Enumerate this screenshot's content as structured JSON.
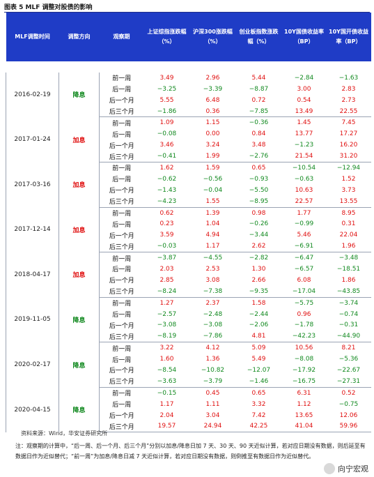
{
  "title": "图表 5 MLF 调整对股债的影响",
  "headers": [
    "MLF调整时间",
    "调整方向",
    "观察期",
    "上证综指涨跌幅（%）",
    "沪深300涨跌幅（%）",
    "创业板指数涨跌幅（%）",
    "10Y国债收益率（BP）",
    "10Y国开债收益率（BP）"
  ],
  "groups": [
    {
      "date": "2016-02-19",
      "direction": "降息",
      "dir_type": "down",
      "rows": [
        {
          "period": "前一周",
          "v": [
            "3.49",
            "2.96",
            "5.44",
            "−2.84",
            "−1.63"
          ]
        },
        {
          "period": "后一周",
          "v": [
            "−3.25",
            "−3.39",
            "−8.87",
            "3.00",
            "2.83"
          ]
        },
        {
          "period": "后一个月",
          "v": [
            "5.55",
            "6.48",
            "0.72",
            "0.54",
            "2.73"
          ]
        },
        {
          "period": "后三个月",
          "v": [
            "−1.86",
            "0.36",
            "−7.85",
            "13.49",
            "22.55"
          ]
        }
      ]
    },
    {
      "date": "2017-01-24",
      "direction": "加息",
      "dir_type": "up",
      "rows": [
        {
          "period": "前一周",
          "v": [
            "1.09",
            "1.15",
            "−0.36",
            "1.45",
            "7.45"
          ]
        },
        {
          "period": "后一周",
          "v": [
            "−0.08",
            "0.00",
            "0.84",
            "13.77",
            "17.27"
          ]
        },
        {
          "period": "后一个月",
          "v": [
            "3.46",
            "3.24",
            "3.48",
            "−1.23",
            "16.20"
          ]
        },
        {
          "period": "后三个月",
          "v": [
            "−0.41",
            "1.99",
            "−2.76",
            "21.54",
            "31.20"
          ]
        }
      ]
    },
    {
      "date": "2017-03-16",
      "direction": "加息",
      "dir_type": "up",
      "rows": [
        {
          "period": "前一周",
          "v": [
            "1.62",
            "1.59",
            "0.65",
            "−10.54",
            "−12.94"
          ]
        },
        {
          "period": "后一周",
          "v": [
            "−0.62",
            "−0.56",
            "−0.93",
            "−0.63",
            "1.52"
          ]
        },
        {
          "period": "后一个月",
          "v": [
            "−1.43",
            "−0.04",
            "−5.50",
            "10.63",
            "3.73"
          ]
        },
        {
          "period": "后三个月",
          "v": [
            "−4.23",
            "1.55",
            "−8.95",
            "22.57",
            "13.55"
          ]
        }
      ]
    },
    {
      "date": "2017-12-14",
      "direction": "加息",
      "dir_type": "up",
      "rows": [
        {
          "period": "前一周",
          "v": [
            "0.62",
            "1.39",
            "0.98",
            "1.77",
            "8.95"
          ]
        },
        {
          "period": "后一周",
          "v": [
            "0.23",
            "1.04",
            "−0.26",
            "−0.99",
            "0.31"
          ]
        },
        {
          "period": "后一个月",
          "v": [
            "3.59",
            "4.94",
            "−3.44",
            "5.46",
            "22.04"
          ]
        },
        {
          "period": "后三个月",
          "v": [
            "−0.03",
            "1.17",
            "2.62",
            "−6.91",
            "1.96"
          ]
        }
      ]
    },
    {
      "date": "2018-04-17",
      "direction": "加息",
      "dir_type": "up",
      "rows": [
        {
          "period": "前一周",
          "v": [
            "−3.87",
            "−4.55",
            "−2.82",
            "−6.47",
            "−3.48"
          ]
        },
        {
          "period": "后一周",
          "v": [
            "2.03",
            "2.53",
            "1.30",
            "−6.57",
            "−18.51"
          ]
        },
        {
          "period": "后一个月",
          "v": [
            "2.85",
            "3.08",
            "2.66",
            "6.08",
            "1.86"
          ]
        },
        {
          "period": "后三个月",
          "v": [
            "−8.24",
            "−7.38",
            "−9.35",
            "−17.04",
            "−43.85"
          ]
        }
      ]
    },
    {
      "date": "2019-11-05",
      "direction": "降息",
      "dir_type": "down",
      "rows": [
        {
          "period": "前一周",
          "v": [
            "1.27",
            "2.37",
            "1.58",
            "−5.75",
            "−3.74"
          ]
        },
        {
          "period": "后一周",
          "v": [
            "−2.57",
            "−2.48",
            "−2.44",
            "0.96",
            "−0.74"
          ]
        },
        {
          "period": "后一个月",
          "v": [
            "−3.08",
            "−3.08",
            "−2.06",
            "−1.78",
            "−0.31"
          ]
        },
        {
          "period": "后三个月",
          "v": [
            "−8.19",
            "−7.86",
            "4.81",
            "−42.23",
            "−44.90"
          ]
        }
      ]
    },
    {
      "date": "2020-02-17",
      "direction": "降息",
      "dir_type": "down",
      "rows": [
        {
          "period": "前一周",
          "v": [
            "3.22",
            "4.12",
            "5.09",
            "10.56",
            "8.21"
          ]
        },
        {
          "period": "后一周",
          "v": [
            "1.60",
            "1.36",
            "5.49",
            "−8.08",
            "−5.36"
          ]
        },
        {
          "period": "后一个月",
          "v": [
            "−8.54",
            "−10.82",
            "−12.07",
            "−17.92",
            "−22.67"
          ]
        },
        {
          "period": "后三个月",
          "v": [
            "−3.63",
            "−3.79",
            "−1.46",
            "−16.75",
            "−27.31"
          ]
        }
      ]
    },
    {
      "date": "2020-04-15",
      "direction": "降息",
      "dir_type": "down",
      "rows": [
        {
          "period": "前一周",
          "v": [
            "−0.15",
            "0.45",
            "0.65",
            "6.31",
            "0.52"
          ]
        },
        {
          "period": "后一周",
          "v": [
            "1.17",
            "1.11",
            "3.32",
            "1.12",
            "−0.75"
          ]
        },
        {
          "period": "后一个月",
          "v": [
            "2.04",
            "3.04",
            "7.42",
            "13.65",
            "12.06"
          ]
        },
        {
          "period": "后三个月",
          "v": [
            "19.57",
            "24.94",
            "42.25",
            "41.04",
            "59.96"
          ]
        }
      ]
    }
  ],
  "source": "资料来源：Wind，华安证券研究所",
  "note": "注：观察期的计算中，“后一周、后一个月、后三个月”分别以加息/降息日加 7 天、30 天、90 天近似计算，若对应日期没有数据，则后延至有数据日作为近似替代；“前一周”为加息/降息日减 7 天近似计算，若对应日期没有数据，则倒推至有数据日作为近似替代。",
  "watermark": "向宁宏观",
  "colors": {
    "header_bg": "#1f3cc6",
    "positive": "#e01010",
    "negative": "#11891f"
  }
}
